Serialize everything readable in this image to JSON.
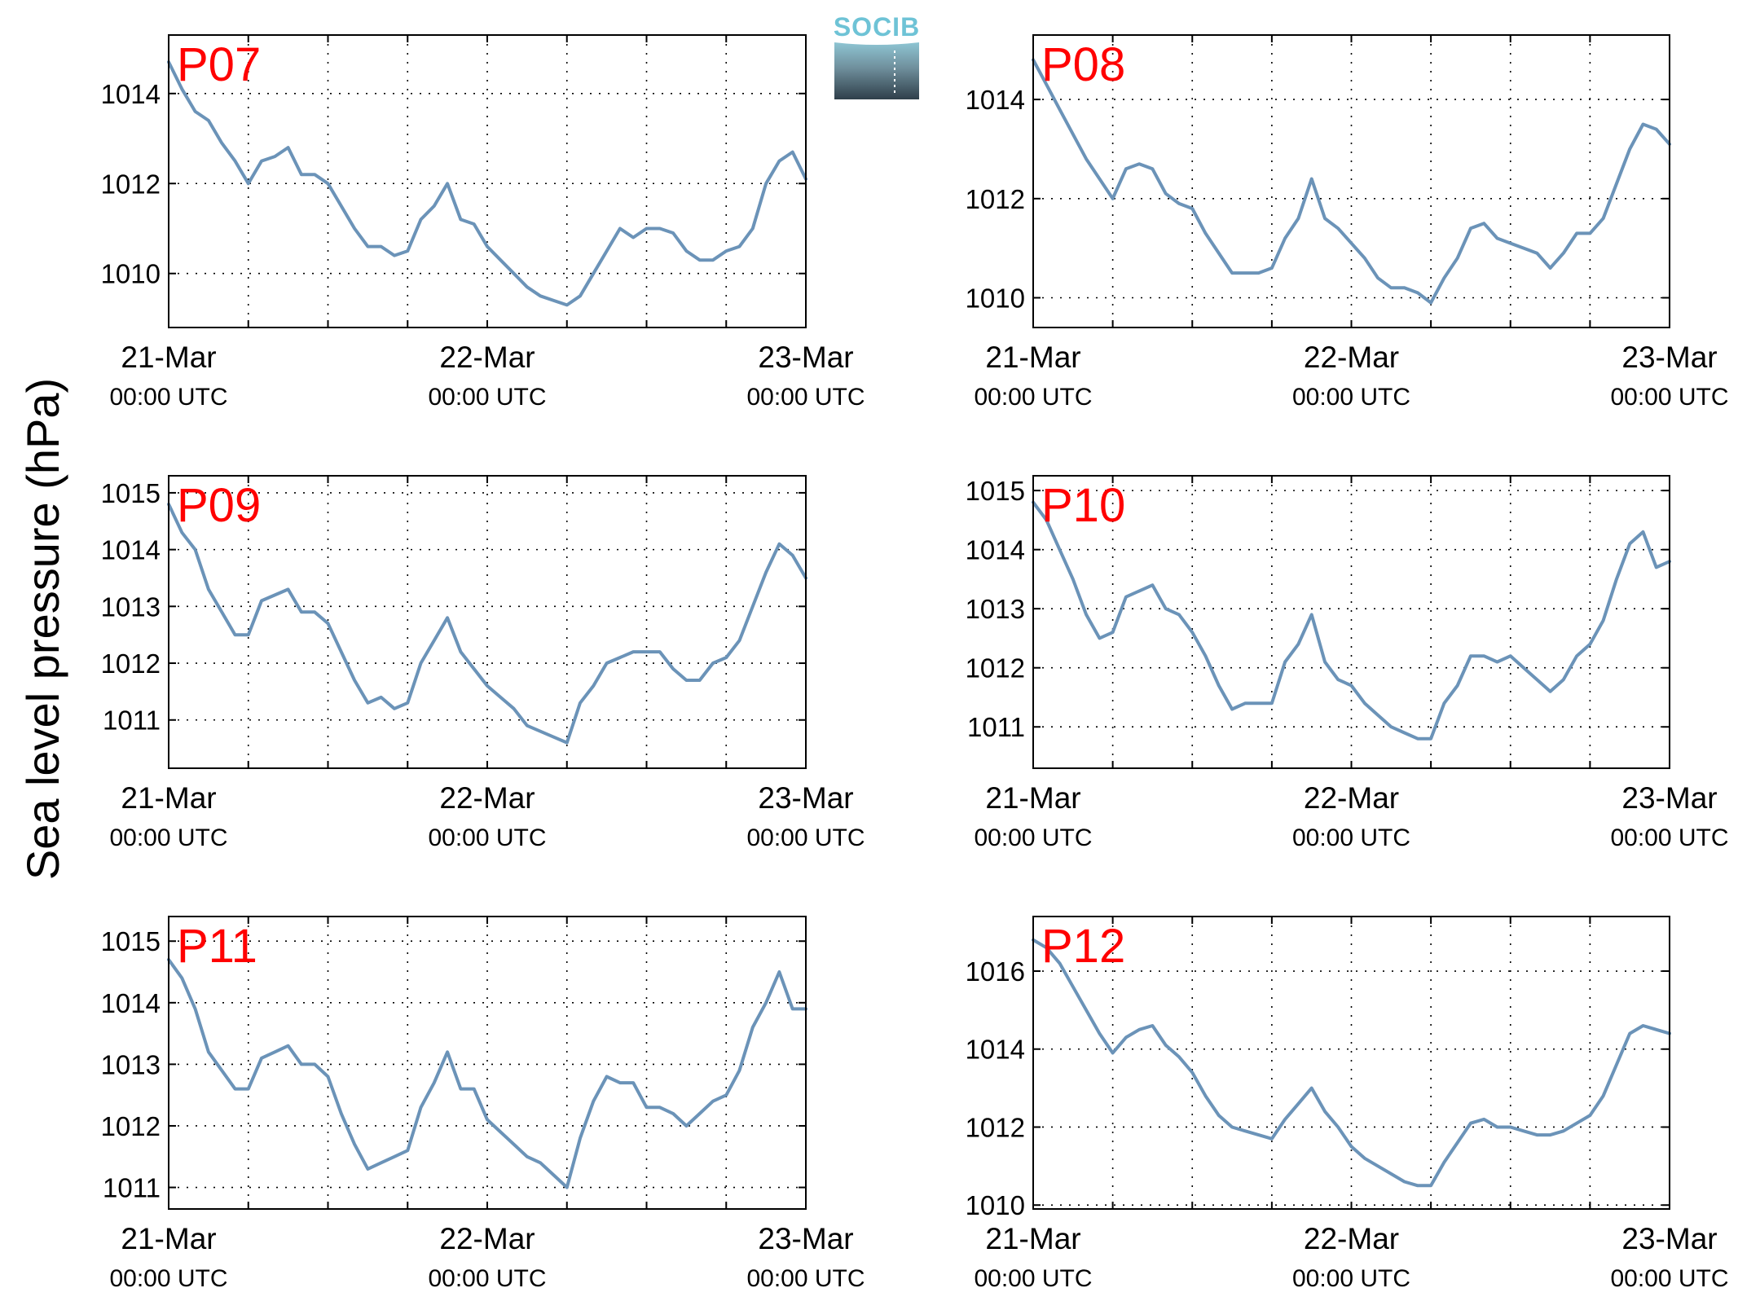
{
  "figure": {
    "ylabel": "Sea level pressure (hPa)",
    "logo_text": "SOCIB",
    "line_color": "#6b93b8",
    "station_color": "#ff0000"
  },
  "chart_data": [
    {
      "type": "line",
      "station": "P07",
      "x_tick_labels": [
        [
          "21-Mar",
          "00:00 UTC"
        ],
        [
          "22-Mar",
          "00:00 UTC"
        ],
        [
          "23-Mar",
          "00:00 UTC"
        ]
      ],
      "xlim": [
        0,
        48
      ],
      "ylim": [
        1008.8,
        1015.3
      ],
      "yticks": [
        1010,
        1012,
        1014
      ],
      "grid": true,
      "series": [
        {
          "x": [
            0,
            1,
            2,
            3,
            4,
            5,
            6,
            7,
            8,
            9,
            10,
            11,
            12,
            13,
            14,
            15,
            16,
            17,
            18,
            19,
            20,
            21,
            22,
            23,
            24,
            25,
            26,
            27,
            28,
            29,
            30,
            31,
            32,
            33,
            34,
            35,
            36,
            37,
            38,
            39,
            40,
            41,
            42,
            43,
            44,
            45,
            46,
            47,
            48
          ],
          "values": [
            1014.7,
            1014.1,
            1013.6,
            1013.4,
            1012.9,
            1012.5,
            1012.0,
            1012.5,
            1012.6,
            1012.8,
            1012.2,
            1012.2,
            1012.0,
            1011.5,
            1011.0,
            1010.6,
            1010.6,
            1010.4,
            1010.5,
            1011.2,
            1011.5,
            1012.0,
            1011.2,
            1011.1,
            1010.6,
            1010.3,
            1010.0,
            1009.7,
            1009.5,
            1009.4,
            1009.3,
            1009.5,
            1010.0,
            1010.5,
            1011.0,
            1010.8,
            1011.0,
            1011.0,
            1010.9,
            1010.5,
            1010.3,
            1010.3,
            1010.5,
            1010.6,
            1011.0,
            1012.0,
            1012.5,
            1012.7,
            1012.1
          ]
        }
      ]
    },
    {
      "type": "line",
      "station": "P08",
      "x_tick_labels": [
        [
          "21-Mar",
          "00:00 UTC"
        ],
        [
          "22-Mar",
          "00:00 UTC"
        ],
        [
          "23-Mar",
          "00:00 UTC"
        ]
      ],
      "xlim": [
        0,
        48
      ],
      "ylim": [
        1009.4,
        1015.3
      ],
      "yticks": [
        1010,
        1012,
        1014
      ],
      "grid": true,
      "series": [
        {
          "x": [
            0,
            1,
            2,
            3,
            4,
            5,
            6,
            7,
            8,
            9,
            10,
            11,
            12,
            13,
            14,
            15,
            16,
            17,
            18,
            19,
            20,
            21,
            22,
            23,
            24,
            25,
            26,
            27,
            28,
            29,
            30,
            31,
            32,
            33,
            34,
            35,
            36,
            37,
            38,
            39,
            40,
            41,
            42,
            43,
            44,
            45,
            46,
            47,
            48
          ],
          "values": [
            1014.8,
            1014.3,
            1013.8,
            1013.3,
            1012.8,
            1012.4,
            1012.0,
            1012.6,
            1012.7,
            1012.6,
            1012.1,
            1011.9,
            1011.8,
            1011.3,
            1010.9,
            1010.5,
            1010.5,
            1010.5,
            1010.6,
            1011.2,
            1011.6,
            1012.4,
            1011.6,
            1011.4,
            1011.1,
            1010.8,
            1010.4,
            1010.2,
            1010.2,
            1010.1,
            1009.9,
            1010.4,
            1010.8,
            1011.4,
            1011.5,
            1011.2,
            1011.1,
            1011.0,
            1010.9,
            1010.6,
            1010.9,
            1011.3,
            1011.3,
            1011.6,
            1012.3,
            1013.0,
            1013.5,
            1013.4,
            1013.1
          ]
        }
      ]
    },
    {
      "type": "line",
      "station": "P09",
      "x_tick_labels": [
        [
          "21-Mar",
          "00:00 UTC"
        ],
        [
          "22-Mar",
          "00:00 UTC"
        ],
        [
          "23-Mar",
          "00:00 UTC"
        ]
      ],
      "xlim": [
        0,
        48
      ],
      "ylim": [
        1010.15,
        1015.3
      ],
      "yticks": [
        1011,
        1012,
        1013,
        1014,
        1015
      ],
      "grid": true,
      "series": [
        {
          "x": [
            0,
            1,
            2,
            3,
            4,
            5,
            6,
            7,
            8,
            9,
            10,
            11,
            12,
            13,
            14,
            15,
            16,
            17,
            18,
            19,
            20,
            21,
            22,
            23,
            24,
            25,
            26,
            27,
            28,
            29,
            30,
            31,
            32,
            33,
            34,
            35,
            36,
            37,
            38,
            39,
            40,
            41,
            42,
            43,
            44,
            45,
            46,
            47,
            48
          ],
          "values": [
            1014.8,
            1014.3,
            1014.0,
            1013.3,
            1012.9,
            1012.5,
            1012.5,
            1013.1,
            1013.2,
            1013.3,
            1012.9,
            1012.9,
            1012.7,
            1012.2,
            1011.7,
            1011.3,
            1011.4,
            1011.2,
            1011.3,
            1012.0,
            1012.4,
            1012.8,
            1012.2,
            1011.9,
            1011.6,
            1011.4,
            1011.2,
            1010.9,
            1010.8,
            1010.7,
            1010.6,
            1011.3,
            1011.6,
            1012.0,
            1012.1,
            1012.2,
            1012.2,
            1012.2,
            1011.9,
            1011.7,
            1011.7,
            1012.0,
            1012.1,
            1012.4,
            1013.0,
            1013.6,
            1014.1,
            1013.9,
            1013.5
          ]
        }
      ]
    },
    {
      "type": "line",
      "station": "P10",
      "x_tick_labels": [
        [
          "21-Mar",
          "00:00 UTC"
        ],
        [
          "22-Mar",
          "00:00 UTC"
        ],
        [
          "23-Mar",
          "00:00 UTC"
        ]
      ],
      "xlim": [
        0,
        48
      ],
      "ylim": [
        1010.3,
        1015.25
      ],
      "yticks": [
        1011,
        1012,
        1013,
        1014,
        1015
      ],
      "grid": true,
      "series": [
        {
          "x": [
            0,
            1,
            2,
            3,
            4,
            5,
            6,
            7,
            8,
            9,
            10,
            11,
            12,
            13,
            14,
            15,
            16,
            17,
            18,
            19,
            20,
            21,
            22,
            23,
            24,
            25,
            26,
            27,
            28,
            29,
            30,
            31,
            32,
            33,
            34,
            35,
            36,
            37,
            38,
            39,
            40,
            41,
            42,
            43,
            44,
            45,
            46,
            47,
            48
          ],
          "values": [
            1014.8,
            1014.5,
            1014.0,
            1013.5,
            1012.9,
            1012.5,
            1012.6,
            1013.2,
            1013.3,
            1013.4,
            1013.0,
            1012.9,
            1012.6,
            1012.2,
            1011.7,
            1011.3,
            1011.4,
            1011.4,
            1011.4,
            1012.1,
            1012.4,
            1012.9,
            1012.1,
            1011.8,
            1011.7,
            1011.4,
            1011.2,
            1011.0,
            1010.9,
            1010.8,
            1010.8,
            1011.4,
            1011.7,
            1012.2,
            1012.2,
            1012.1,
            1012.2,
            1012.0,
            1011.8,
            1011.6,
            1011.8,
            1012.2,
            1012.4,
            1012.8,
            1013.5,
            1014.1,
            1014.3,
            1013.7,
            1013.8
          ]
        }
      ]
    },
    {
      "type": "line",
      "station": "P11",
      "x_tick_labels": [
        [
          "21-Mar",
          "00:00 UTC"
        ],
        [
          "22-Mar",
          "00:00 UTC"
        ],
        [
          "23-Mar",
          "00:00 UTC"
        ]
      ],
      "xlim": [
        0,
        48
      ],
      "ylim": [
        1010.65,
        1015.4
      ],
      "yticks": [
        1011,
        1012,
        1013,
        1014,
        1015
      ],
      "grid": true,
      "series": [
        {
          "x": [
            0,
            1,
            2,
            3,
            4,
            5,
            6,
            7,
            8,
            9,
            10,
            11,
            12,
            13,
            14,
            15,
            16,
            17,
            18,
            19,
            20,
            21,
            22,
            23,
            24,
            25,
            26,
            27,
            28,
            29,
            30,
            31,
            32,
            33,
            34,
            35,
            36,
            37,
            38,
            39,
            40,
            41,
            42,
            43,
            44,
            45,
            46,
            47,
            48
          ],
          "values": [
            1014.7,
            1014.4,
            1013.9,
            1013.2,
            1012.9,
            1012.6,
            1012.6,
            1013.1,
            1013.2,
            1013.3,
            1013.0,
            1013.0,
            1012.8,
            1012.2,
            1011.7,
            1011.3,
            1011.4,
            1011.5,
            1011.6,
            1012.3,
            1012.7,
            1013.2,
            1012.6,
            1012.6,
            1012.1,
            1011.9,
            1011.7,
            1011.5,
            1011.4,
            1011.2,
            1011.0,
            1011.8,
            1012.4,
            1012.8,
            1012.7,
            1012.7,
            1012.3,
            1012.3,
            1012.2,
            1012.0,
            1012.2,
            1012.4,
            1012.5,
            1012.9,
            1013.6,
            1014.0,
            1014.5,
            1013.9,
            1013.9
          ]
        }
      ]
    },
    {
      "type": "line",
      "station": "P12",
      "x_tick_labels": [
        [
          "21-Mar",
          "00:00 UTC"
        ],
        [
          "22-Mar",
          "00:00 UTC"
        ],
        [
          "23-Mar",
          "00:00 UTC"
        ]
      ],
      "xlim": [
        0,
        48
      ],
      "ylim": [
        1009.9,
        1017.4
      ],
      "yticks": [
        1010,
        1012,
        1014,
        1016
      ],
      "grid": true,
      "series": [
        {
          "x": [
            0,
            1,
            2,
            3,
            4,
            5,
            6,
            7,
            8,
            9,
            10,
            11,
            12,
            13,
            14,
            15,
            16,
            17,
            18,
            19,
            20,
            21,
            22,
            23,
            24,
            25,
            26,
            27,
            28,
            29,
            30,
            31,
            32,
            33,
            34,
            35,
            36,
            37,
            38,
            39,
            40,
            41,
            42,
            43,
            44,
            45,
            46,
            47,
            48
          ],
          "values": [
            1016.8,
            1016.6,
            1016.2,
            1015.6,
            1015.0,
            1014.4,
            1013.9,
            1014.3,
            1014.5,
            1014.6,
            1014.1,
            1013.8,
            1013.4,
            1012.8,
            1012.3,
            1012.0,
            1011.9,
            1011.8,
            1011.7,
            1012.2,
            1012.6,
            1013.0,
            1012.4,
            1012.0,
            1011.5,
            1011.2,
            1011.0,
            1010.8,
            1010.6,
            1010.5,
            1010.5,
            1011.1,
            1011.6,
            1012.1,
            1012.2,
            1012.0,
            1012.0,
            1011.9,
            1011.8,
            1011.8,
            1011.9,
            1012.1,
            1012.3,
            1012.8,
            1013.6,
            1014.4,
            1014.6,
            1014.5,
            1014.4
          ]
        }
      ]
    }
  ]
}
